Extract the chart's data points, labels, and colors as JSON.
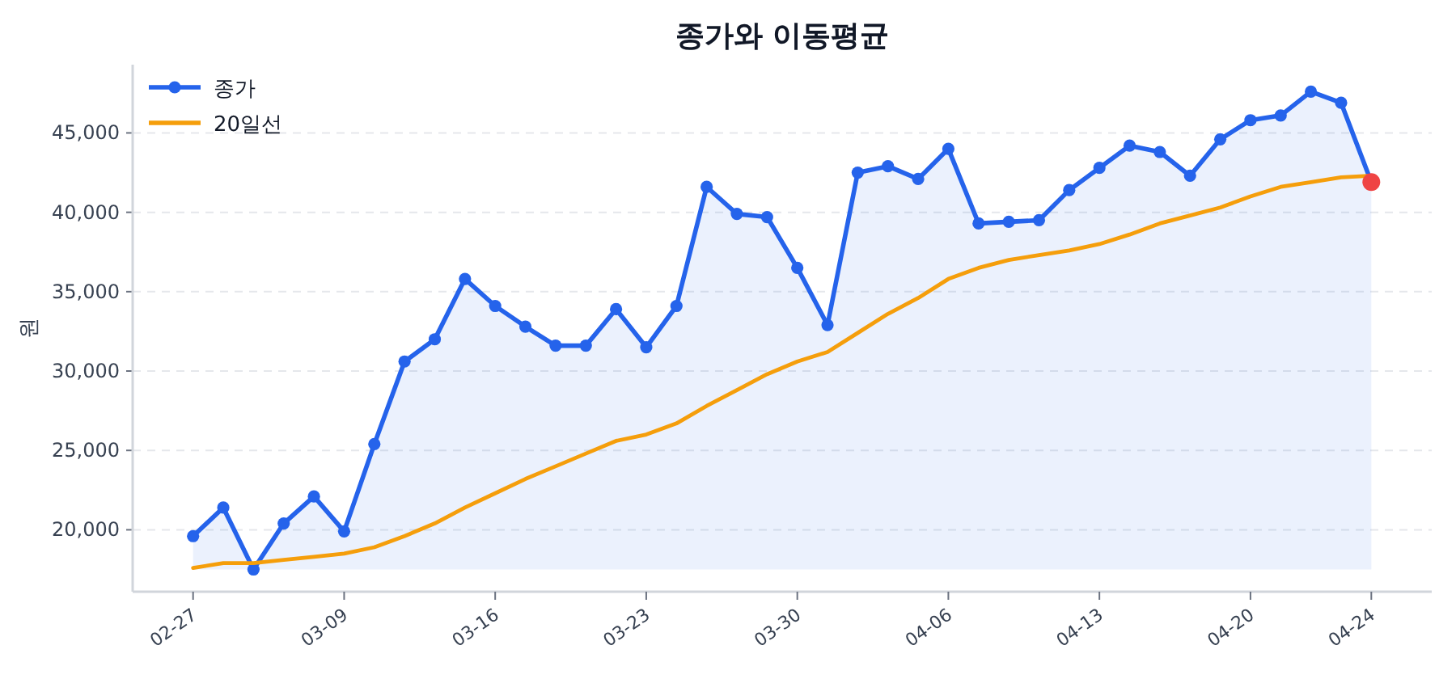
{
  "chart_data": {
    "type": "line",
    "title": "종가와 이동평균",
    "ylabel": "원",
    "categories": [
      "02-27",
      null,
      null,
      null,
      null,
      "03-09",
      null,
      null,
      null,
      null,
      "03-16",
      null,
      null,
      null,
      null,
      "03-23",
      null,
      null,
      null,
      null,
      "03-30",
      null,
      null,
      null,
      null,
      "04-06",
      null,
      null,
      null,
      null,
      "04-13",
      null,
      null,
      null,
      null,
      "04-20",
      null,
      null,
      null,
      "04-24"
    ],
    "series": [
      {
        "name": "종가",
        "type": "area",
        "color": "#2563eb",
        "marker": "circle",
        "values": [
          19600,
          21400,
          17500,
          20400,
          22100,
          19900,
          25400,
          30600,
          32000,
          35800,
          34100,
          32800,
          31600,
          31600,
          33900,
          31500,
          34100,
          41600,
          39900,
          39700,
          36500,
          32900,
          42500,
          42900,
          42100,
          44000,
          39300,
          39400,
          39500,
          41400,
          42800,
          44200,
          43800,
          42300,
          44600,
          45800,
          46100,
          47600,
          46900,
          41900
        ]
      },
      {
        "name": "20일선",
        "color": "#f59e0b",
        "values": [
          17600,
          17900,
          17900,
          18100,
          18300,
          18500,
          18900,
          19600,
          20400,
          21400,
          22300,
          23200,
          24000,
          24800,
          25600,
          26000,
          26700,
          27800,
          28800,
          29800,
          30600,
          31200,
          32400,
          33600,
          34600,
          35800,
          36500,
          37000,
          37300,
          37600,
          38000,
          38600,
          39300,
          39800,
          40300,
          41000,
          41600,
          41900,
          42200,
          42300
        ]
      },
      {
        "type": "scatter",
        "color": "#ef4444",
        "marker": "circle",
        "x": [
          "04-24"
        ],
        "values": [
          41900
        ]
      }
    ],
    "ylim": [
      16100,
      49300
    ],
    "yticks": [
      {
        "value": 20000,
        "label": "20,000"
      },
      {
        "value": 25000,
        "label": "25,000"
      },
      {
        "value": 30000,
        "label": "30,000"
      },
      {
        "value": 35000,
        "label": "35,000"
      },
      {
        "value": 40000,
        "label": "40,000"
      },
      {
        "value": 45000,
        "label": "45,000"
      }
    ],
    "grid": "y",
    "legend": "top left"
  }
}
